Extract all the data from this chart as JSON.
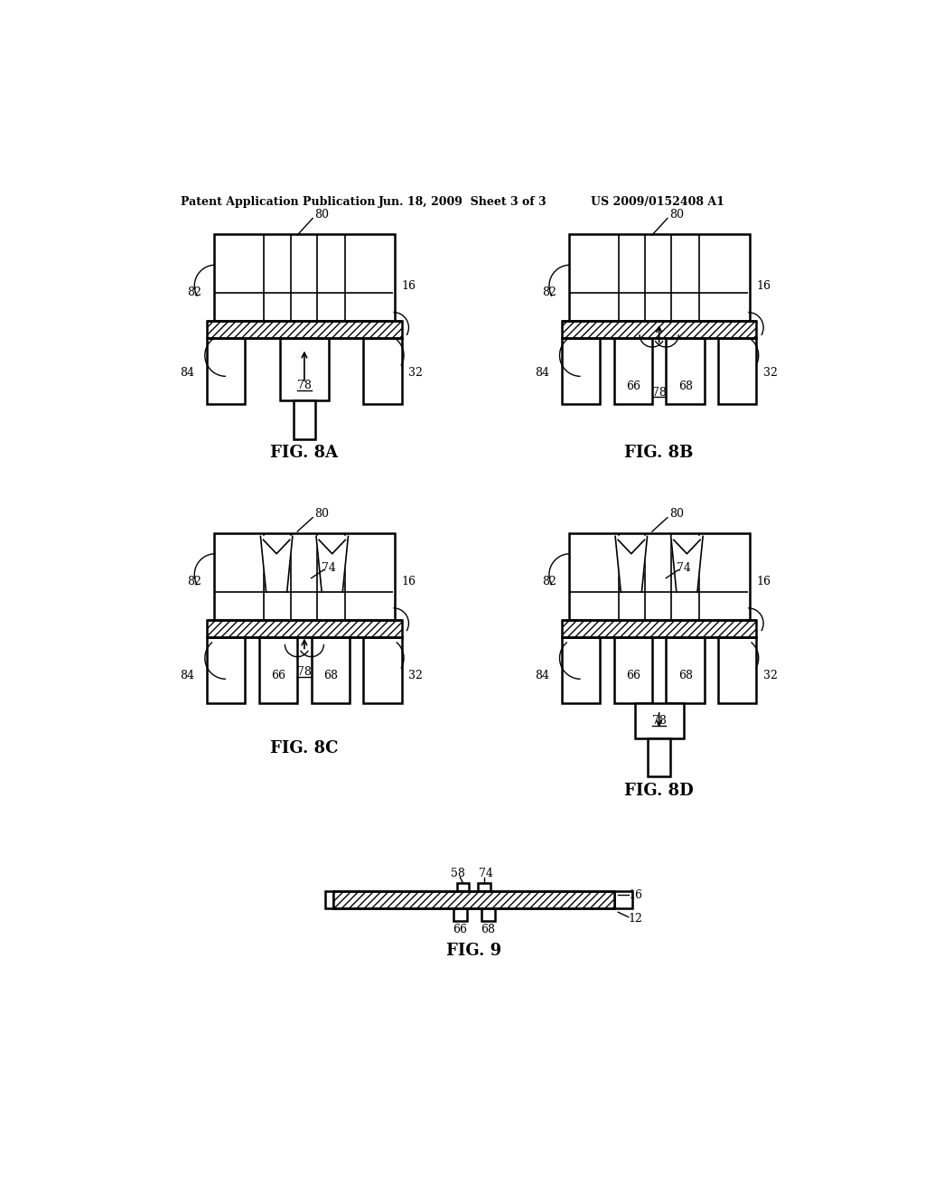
{
  "title_left": "Patent Application Publication",
  "title_mid": "Jun. 18, 2009  Sheet 3 of 3",
  "title_right": "US 2009/0152408 A1",
  "bg_color": "#ffffff"
}
